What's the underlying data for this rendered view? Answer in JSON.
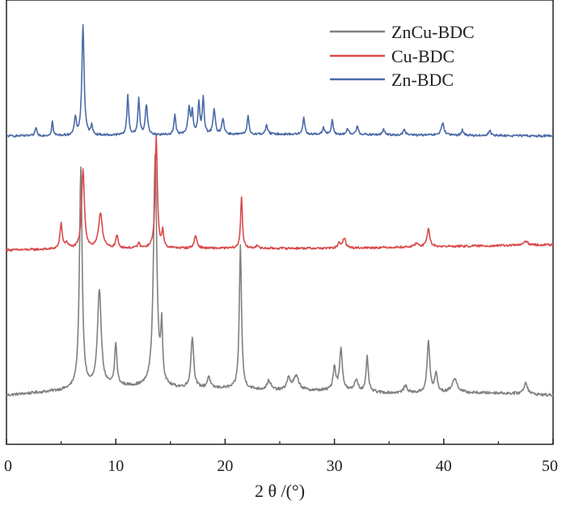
{
  "chart_data": {
    "type": "line",
    "xlabel": "2 θ /(°)",
    "ylabel": "",
    "xlim": [
      0,
      50
    ],
    "x_ticks": [
      "0",
      "10",
      "20",
      "30",
      "40",
      "50"
    ],
    "y_ticks_shown": false,
    "grid": false,
    "legend_placement": "top-right",
    "colors": {
      "ZnCu-BDC": "#808080",
      "Cu-BDC": "#d94a4a",
      "Zn-BDC": "#4a6aa8"
    },
    "series": [
      {
        "name": "ZnCu-BDC",
        "baseline": [
          [
            0,
            0.03
          ],
          [
            5,
            0.05
          ],
          [
            10,
            0.07
          ],
          [
            15,
            0.06
          ],
          [
            20,
            0.06
          ],
          [
            25,
            0.05
          ],
          [
            30,
            0.05
          ],
          [
            35,
            0.04
          ],
          [
            40,
            0.04
          ],
          [
            45,
            0.04
          ],
          [
            50,
            0.03
          ]
        ],
        "peaks": [
          [
            6.8,
            0.95,
            0.15
          ],
          [
            8.5,
            0.42,
            0.2
          ],
          [
            10.0,
            0.18,
            0.12
          ],
          [
            13.6,
            1.0,
            0.18
          ],
          [
            14.2,
            0.24,
            0.1
          ],
          [
            17.0,
            0.22,
            0.15
          ],
          [
            18.5,
            0.05,
            0.15
          ],
          [
            21.4,
            0.62,
            0.12
          ],
          [
            24.0,
            0.04,
            0.2
          ],
          [
            25.8,
            0.05,
            0.2
          ],
          [
            26.5,
            0.06,
            0.3
          ],
          [
            30.0,
            0.1,
            0.15
          ],
          [
            30.6,
            0.18,
            0.15
          ],
          [
            32.0,
            0.05,
            0.2
          ],
          [
            33.0,
            0.15,
            0.12
          ],
          [
            36.5,
            0.03,
            0.2
          ],
          [
            38.6,
            0.22,
            0.15
          ],
          [
            39.3,
            0.08,
            0.15
          ],
          [
            41.0,
            0.06,
            0.3
          ],
          [
            47.5,
            0.05,
            0.2
          ]
        ]
      },
      {
        "name": "Cu-BDC",
        "baseline": [
          [
            0,
            0.0
          ],
          [
            10,
            0.01
          ],
          [
            20,
            0.01
          ],
          [
            30,
            0.01
          ],
          [
            40,
            0.02
          ],
          [
            50,
            0.03
          ]
        ],
        "peaks": [
          [
            5.0,
            0.14,
            0.12
          ],
          [
            5.5,
            0.03,
            0.2
          ],
          [
            7.0,
            0.45,
            0.15
          ],
          [
            8.6,
            0.2,
            0.2
          ],
          [
            10.1,
            0.07,
            0.12
          ],
          [
            12.1,
            0.03,
            0.1
          ],
          [
            13.7,
            0.63,
            0.12
          ],
          [
            14.3,
            0.09,
            0.1
          ],
          [
            17.3,
            0.07,
            0.15
          ],
          [
            21.5,
            0.29,
            0.1
          ],
          [
            22.9,
            0.02,
            0.1
          ],
          [
            30.4,
            0.03,
            0.12
          ],
          [
            30.9,
            0.06,
            0.15
          ],
          [
            37.5,
            0.02,
            0.2
          ],
          [
            38.6,
            0.1,
            0.15
          ],
          [
            47.5,
            0.02,
            0.25
          ]
        ]
      },
      {
        "name": "Zn-BDC",
        "baseline": [
          [
            0,
            0.0
          ],
          [
            25,
            0.01
          ],
          [
            50,
            0.0
          ]
        ],
        "peaks": [
          [
            2.7,
            0.05,
            0.08
          ],
          [
            4.2,
            0.08,
            0.08
          ],
          [
            6.3,
            0.1,
            0.1
          ],
          [
            7.0,
            0.62,
            0.12
          ],
          [
            7.8,
            0.06,
            0.08
          ],
          [
            11.1,
            0.22,
            0.1
          ],
          [
            12.1,
            0.2,
            0.1
          ],
          [
            12.8,
            0.17,
            0.12
          ],
          [
            15.4,
            0.11,
            0.1
          ],
          [
            16.7,
            0.15,
            0.12
          ],
          [
            17.0,
            0.12,
            0.1
          ],
          [
            17.6,
            0.18,
            0.1
          ],
          [
            18.0,
            0.2,
            0.1
          ],
          [
            19.0,
            0.14,
            0.12
          ],
          [
            19.8,
            0.09,
            0.12
          ],
          [
            22.1,
            0.1,
            0.1
          ],
          [
            23.8,
            0.05,
            0.12
          ],
          [
            27.2,
            0.1,
            0.1
          ],
          [
            29.0,
            0.04,
            0.12
          ],
          [
            29.8,
            0.08,
            0.1
          ],
          [
            31.2,
            0.03,
            0.12
          ],
          [
            32.1,
            0.05,
            0.12
          ],
          [
            34.5,
            0.03,
            0.12
          ],
          [
            36.4,
            0.03,
            0.12
          ],
          [
            39.9,
            0.07,
            0.15
          ],
          [
            41.7,
            0.03,
            0.12
          ],
          [
            44.2,
            0.03,
            0.12
          ]
        ]
      }
    ]
  }
}
